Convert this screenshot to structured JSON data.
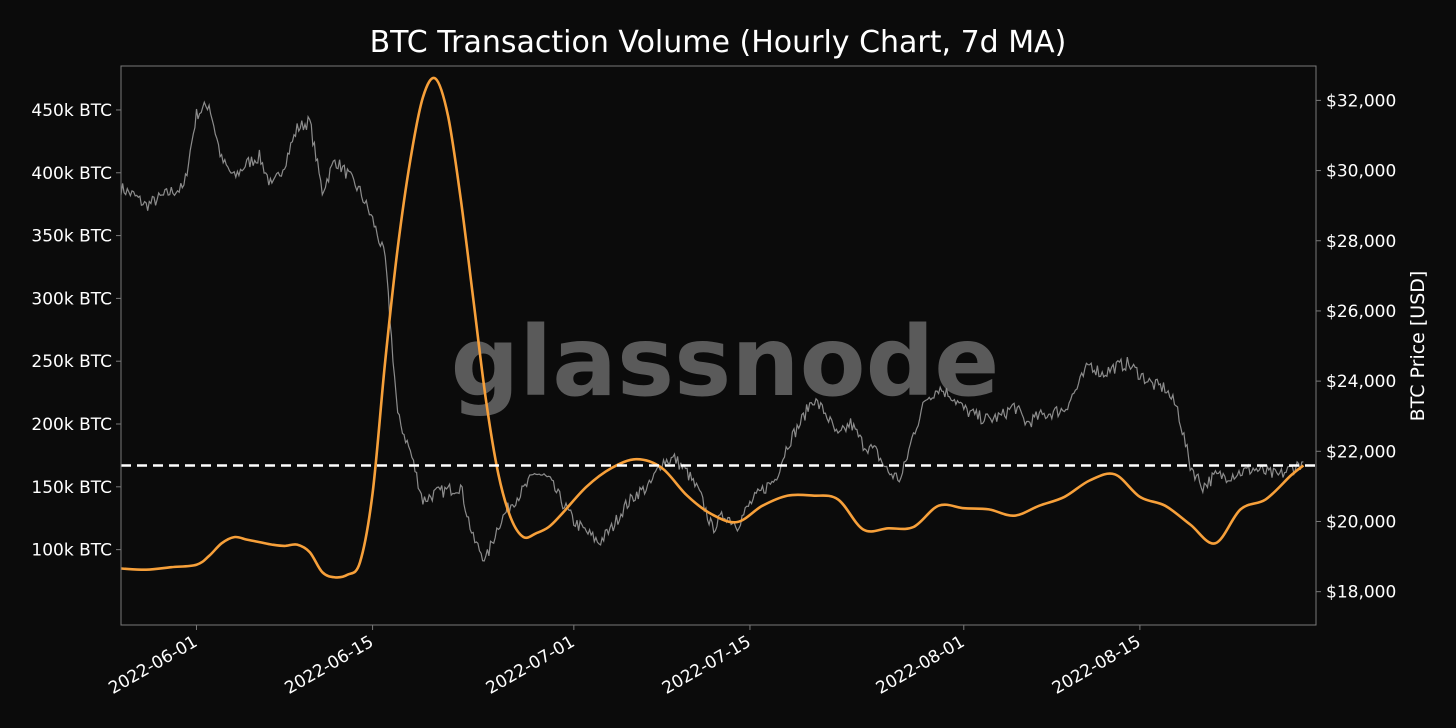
{
  "colors": {
    "background": "#0b0b0b",
    "volume_line": "#f7a03a",
    "price_line": "#8c8c8c",
    "threshold_line": "#ffffff",
    "axes": "#7a7a7a",
    "text": "#ffffff",
    "watermark": "#5a5a5a"
  },
  "chart_data": {
    "type": "line",
    "title": "BTC Transaction Volume (Hourly Chart, 7d MA)",
    "watermark": "glassnode",
    "x_range": [
      "2022-05-26",
      "2022-08-29"
    ],
    "x_ticks": [
      "2022-06-01",
      "2022-06-15",
      "2022-07-01",
      "2022-07-15",
      "2022-08-01",
      "2022-08-15"
    ],
    "left_axis": {
      "label": "",
      "range": [
        40000,
        485000
      ],
      "ticks": [
        100000,
        150000,
        200000,
        250000,
        300000,
        350000,
        400000,
        450000
      ],
      "tick_labels": [
        "100k BTC",
        "150k BTC",
        "200k BTC",
        "250k BTC",
        "300k BTC",
        "350k BTC",
        "400k BTC",
        "450k BTC"
      ]
    },
    "right_axis": {
      "label": "BTC Price [USD]",
      "range": [
        17050,
        32980
      ],
      "ticks": [
        18000,
        20000,
        22000,
        24000,
        26000,
        28000,
        30000,
        32000
      ],
      "tick_labels": [
        "$18,000",
        "$20,000",
        "$22,000",
        "$24,000",
        "$26,000",
        "$28,000",
        "$30,000",
        "$32,000"
      ]
    },
    "threshold": {
      "axis": "left",
      "value": 167000,
      "style": "dashed"
    },
    "series": [
      {
        "axis": "left",
        "x": [
          "2022-05-26",
          "2022-05-28",
          "2022-05-30",
          "2022-06-01",
          "2022-06-02",
          "2022-06-03",
          "2022-06-04",
          "2022-06-05",
          "2022-06-06",
          "2022-06-07",
          "2022-06-08",
          "2022-06-09",
          "2022-06-10",
          "2022-06-11",
          "2022-06-12",
          "2022-06-13",
          "2022-06-14",
          "2022-06-15",
          "2022-06-16",
          "2022-06-17",
          "2022-06-18",
          "2022-06-19",
          "2022-06-20",
          "2022-06-21",
          "2022-06-22",
          "2022-06-23",
          "2022-06-24",
          "2022-06-25",
          "2022-06-26",
          "2022-06-27",
          "2022-06-28",
          "2022-06-29",
          "2022-06-30",
          "2022-07-02",
          "2022-07-04",
          "2022-07-06",
          "2022-07-08",
          "2022-07-10",
          "2022-07-12",
          "2022-07-14",
          "2022-07-16",
          "2022-07-18",
          "2022-07-20",
          "2022-07-22",
          "2022-07-24",
          "2022-07-26",
          "2022-07-28",
          "2022-07-30",
          "2022-08-01",
          "2022-08-03",
          "2022-08-05",
          "2022-08-07",
          "2022-08-09",
          "2022-08-11",
          "2022-08-13",
          "2022-08-15",
          "2022-08-17",
          "2022-08-19",
          "2022-08-21",
          "2022-08-23",
          "2022-08-25",
          "2022-08-27",
          "2022-08-28"
        ],
        "values": [
          85000,
          84000,
          86000,
          88000,
          95000,
          105000,
          110000,
          108000,
          106000,
          104000,
          103000,
          104000,
          98000,
          82000,
          78000,
          80000,
          90000,
          145000,
          250000,
          340000,
          410000,
          460000,
          475000,
          445000,
          380000,
          300000,
          220000,
          160000,
          125000,
          110000,
          113000,
          118000,
          128000,
          150000,
          165000,
          172000,
          165000,
          143000,
          128000,
          122000,
          135000,
          143000,
          143000,
          140000,
          116000,
          117000,
          118000,
          135000,
          133000,
          132000,
          127000,
          135000,
          142000,
          155000,
          160000,
          142000,
          135000,
          120000,
          105000,
          132000,
          140000,
          159000,
          167000
        ]
      },
      {
        "axis": "right",
        "x": [
          "2022-05-26",
          "2022-05-27",
          "2022-05-28",
          "2022-05-29",
          "2022-05-30",
          "2022-05-31",
          "2022-06-01",
          "2022-06-02",
          "2022-06-03",
          "2022-06-04",
          "2022-06-05",
          "2022-06-06",
          "2022-06-07",
          "2022-06-08",
          "2022-06-09",
          "2022-06-10",
          "2022-06-11",
          "2022-06-12",
          "2022-06-13",
          "2022-06-14",
          "2022-06-15",
          "2022-06-16",
          "2022-06-17",
          "2022-06-18",
          "2022-06-19",
          "2022-06-20",
          "2022-06-21",
          "2022-06-22",
          "2022-06-23",
          "2022-06-24",
          "2022-06-25",
          "2022-06-26",
          "2022-06-27",
          "2022-06-28",
          "2022-06-29",
          "2022-06-30",
          "2022-07-01",
          "2022-07-02",
          "2022-07-03",
          "2022-07-04",
          "2022-07-05",
          "2022-07-06",
          "2022-07-07",
          "2022-07-08",
          "2022-07-09",
          "2022-07-10",
          "2022-07-11",
          "2022-07-12",
          "2022-07-13",
          "2022-07-14",
          "2022-07-15",
          "2022-07-16",
          "2022-07-17",
          "2022-07-18",
          "2022-07-19",
          "2022-07-20",
          "2022-07-21",
          "2022-07-22",
          "2022-07-23",
          "2022-07-24",
          "2022-07-25",
          "2022-07-26",
          "2022-07-27",
          "2022-07-28",
          "2022-07-29",
          "2022-07-30",
          "2022-07-31",
          "2022-08-01",
          "2022-08-02",
          "2022-08-03",
          "2022-08-04",
          "2022-08-05",
          "2022-08-06",
          "2022-08-07",
          "2022-08-08",
          "2022-08-09",
          "2022-08-10",
          "2022-08-11",
          "2022-08-12",
          "2022-08-13",
          "2022-08-14",
          "2022-08-15",
          "2022-08-16",
          "2022-08-17",
          "2022-08-18",
          "2022-08-19",
          "2022-08-20",
          "2022-08-21",
          "2022-08-22",
          "2022-08-23",
          "2022-08-24",
          "2022-08-25",
          "2022-08-26",
          "2022-08-27",
          "2022-08-28"
        ],
        "values": [
          29500,
          29300,
          29000,
          29200,
          29400,
          29500,
          31600,
          31900,
          30300,
          29800,
          30200,
          30400,
          29500,
          30200,
          31200,
          31400,
          29400,
          30300,
          29900,
          29400,
          28600,
          27500,
          23000,
          22000,
          20600,
          20800,
          20900,
          21000,
          19500,
          18900,
          19900,
          20500,
          20900,
          21400,
          21200,
          20600,
          20000,
          19700,
          19400,
          19800,
          20400,
          20800,
          21000,
          21700,
          21800,
          21400,
          20800,
          19800,
          20200,
          19900,
          20500,
          20900,
          21200,
          22200,
          22800,
          23500,
          23100,
          22400,
          22800,
          22200,
          22000,
          21400,
          21200,
          22500,
          23500,
          23800,
          23600,
          23200,
          23000,
          22900,
          23000,
          23300,
          22800,
          23000,
          23100,
          23200,
          23800,
          24500,
          24200,
          24400,
          24500,
          24200,
          23900,
          23800,
          23200,
          21600,
          21000,
          21300,
          21300,
          21400,
          21500,
          21400,
          21300,
          21500,
          21700
        ]
      }
    ]
  }
}
